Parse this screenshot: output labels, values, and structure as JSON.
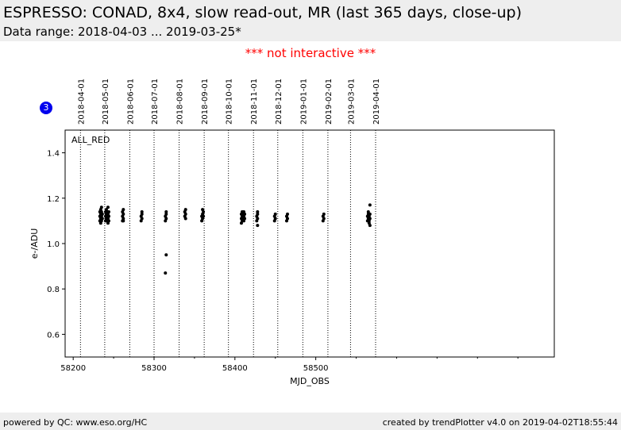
{
  "header": {
    "title": "ESPRESSO: CONAD, 8x4, slow read-out, MR (last 365 days, close-up)",
    "subtitle": "Data range: 2018-04-03 ... 2019-03-25*"
  },
  "notice": "*** not interactive ***",
  "badge": "3",
  "footer": {
    "left": "powered by QC: www.eso.org/HC",
    "right": "created by trendPlotter v4.0 on 2019-04-02T18:55:44"
  },
  "chart_data": {
    "type": "scatter",
    "xlabel": "MJD_OBS",
    "ylabel": "e-/ADU",
    "xlim": [
      58190,
      58795
    ],
    "ylim": [
      0.5,
      1.5
    ],
    "x_ticks": [
      58200,
      58300,
      58400,
      58500
    ],
    "y_ticks": [
      0.6,
      0.8,
      1.0,
      1.2,
      1.4
    ],
    "box_label": "ALL_RED",
    "date_markers": [
      {
        "label": "2018-04-01",
        "mjd": 58209
      },
      {
        "label": "2018-05-01",
        "mjd": 58239
      },
      {
        "label": "2018-06-01",
        "mjd": 58270
      },
      {
        "label": "2018-07-01",
        "mjd": 58300
      },
      {
        "label": "2018-08-01",
        "mjd": 58331
      },
      {
        "label": "2018-09-01",
        "mjd": 58362
      },
      {
        "label": "2018-10-01",
        "mjd": 58392
      },
      {
        "label": "2018-11-01",
        "mjd": 58423
      },
      {
        "label": "2018-12-01",
        "mjd": 58453
      },
      {
        "label": "2019-01-01",
        "mjd": 58484
      },
      {
        "label": "2019-02-01",
        "mjd": 58515
      },
      {
        "label": "2019-03-01",
        "mjd": 58543
      },
      {
        "label": "2019-04-01",
        "mjd": 58574
      }
    ],
    "series": [
      {
        "color": "#000000",
        "points": [
          {
            "x": 58233,
            "y": 1.1
          },
          {
            "x": 58233,
            "y": 1.12
          },
          {
            "x": 58233,
            "y": 1.14
          },
          {
            "x": 58234,
            "y": 1.09
          },
          {
            "x": 58234,
            "y": 1.11
          },
          {
            "x": 58234,
            "y": 1.13
          },
          {
            "x": 58234,
            "y": 1.15
          },
          {
            "x": 58235,
            "y": 1.1
          },
          {
            "x": 58235,
            "y": 1.12
          },
          {
            "x": 58235,
            "y": 1.14
          },
          {
            "x": 58235,
            "y": 1.16
          },
          {
            "x": 58236,
            "y": 1.11
          },
          {
            "x": 58236,
            "y": 1.13
          },
          {
            "x": 58240,
            "y": 1.1
          },
          {
            "x": 58240,
            "y": 1.12
          },
          {
            "x": 58240,
            "y": 1.14
          },
          {
            "x": 58241,
            "y": 1.11
          },
          {
            "x": 58241,
            "y": 1.13
          },
          {
            "x": 58241,
            "y": 1.15
          },
          {
            "x": 58242,
            "y": 1.1
          },
          {
            "x": 58242,
            "y": 1.12
          },
          {
            "x": 58242,
            "y": 1.14
          },
          {
            "x": 58243,
            "y": 1.09
          },
          {
            "x": 58243,
            "y": 1.11
          },
          {
            "x": 58243,
            "y": 1.13
          },
          {
            "x": 58243,
            "y": 1.16
          },
          {
            "x": 58244,
            "y": 1.12
          },
          {
            "x": 58244,
            "y": 1.14
          },
          {
            "x": 58244,
            "y": 1.1
          },
          {
            "x": 58261,
            "y": 1.1
          },
          {
            "x": 58261,
            "y": 1.12
          },
          {
            "x": 58261,
            "y": 1.14
          },
          {
            "x": 58262,
            "y": 1.11
          },
          {
            "x": 58262,
            "y": 1.13
          },
          {
            "x": 58262,
            "y": 1.15
          },
          {
            "x": 58262,
            "y": 1.1
          },
          {
            "x": 58284,
            "y": 1.1
          },
          {
            "x": 58284,
            "y": 1.12
          },
          {
            "x": 58285,
            "y": 1.11
          },
          {
            "x": 58285,
            "y": 1.13
          },
          {
            "x": 58285,
            "y": 1.14
          },
          {
            "x": 58314,
            "y": 1.1
          },
          {
            "x": 58314,
            "y": 1.12
          },
          {
            "x": 58315,
            "y": 1.11
          },
          {
            "x": 58315,
            "y": 1.13
          },
          {
            "x": 58315,
            "y": 1.14
          },
          {
            "x": 58315,
            "y": 0.95
          },
          {
            "x": 58314,
            "y": 0.87
          },
          {
            "x": 58338,
            "y": 1.12
          },
          {
            "x": 58338,
            "y": 1.14
          },
          {
            "x": 58339,
            "y": 1.11
          },
          {
            "x": 58339,
            "y": 1.13
          },
          {
            "x": 58339,
            "y": 1.15
          },
          {
            "x": 58359,
            "y": 1.1
          },
          {
            "x": 58359,
            "y": 1.12
          },
          {
            "x": 58360,
            "y": 1.11
          },
          {
            "x": 58360,
            "y": 1.13
          },
          {
            "x": 58360,
            "y": 1.15
          },
          {
            "x": 58361,
            "y": 1.12
          },
          {
            "x": 58361,
            "y": 1.14
          },
          {
            "x": 58408,
            "y": 1.09
          },
          {
            "x": 58408,
            "y": 1.11
          },
          {
            "x": 58408,
            "y": 1.13
          },
          {
            "x": 58409,
            "y": 1.1
          },
          {
            "x": 58409,
            "y": 1.12
          },
          {
            "x": 58409,
            "y": 1.14
          },
          {
            "x": 58410,
            "y": 1.11
          },
          {
            "x": 58410,
            "y": 1.13
          },
          {
            "x": 58410,
            "y": 1.12
          },
          {
            "x": 58411,
            "y": 1.1
          },
          {
            "x": 58411,
            "y": 1.12
          },
          {
            "x": 58411,
            "y": 1.14
          },
          {
            "x": 58412,
            "y": 1.11
          },
          {
            "x": 58412,
            "y": 1.13
          },
          {
            "x": 58427,
            "y": 1.1
          },
          {
            "x": 58427,
            "y": 1.12
          },
          {
            "x": 58428,
            "y": 1.11
          },
          {
            "x": 58428,
            "y": 1.13
          },
          {
            "x": 58428,
            "y": 1.14
          },
          {
            "x": 58428,
            "y": 1.08
          },
          {
            "x": 58449,
            "y": 1.1
          },
          {
            "x": 58449,
            "y": 1.12
          },
          {
            "x": 58450,
            "y": 1.11
          },
          {
            "x": 58450,
            "y": 1.13
          },
          {
            "x": 58464,
            "y": 1.1
          },
          {
            "x": 58464,
            "y": 1.12
          },
          {
            "x": 58465,
            "y": 1.11
          },
          {
            "x": 58465,
            "y": 1.13
          },
          {
            "x": 58509,
            "y": 1.1
          },
          {
            "x": 58509,
            "y": 1.12
          },
          {
            "x": 58510,
            "y": 1.11
          },
          {
            "x": 58510,
            "y": 1.13
          },
          {
            "x": 58564,
            "y": 1.1
          },
          {
            "x": 58564,
            "y": 1.12
          },
          {
            "x": 58565,
            "y": 1.11
          },
          {
            "x": 58565,
            "y": 1.13
          },
          {
            "x": 58565,
            "y": 1.14
          },
          {
            "x": 58566,
            "y": 1.09
          },
          {
            "x": 58566,
            "y": 1.12
          },
          {
            "x": 58566,
            "y": 1.1
          },
          {
            "x": 58567,
            "y": 1.11
          },
          {
            "x": 58567,
            "y": 1.13
          },
          {
            "x": 58567,
            "y": 1.17
          },
          {
            "x": 58567,
            "y": 1.08
          }
        ]
      }
    ]
  }
}
